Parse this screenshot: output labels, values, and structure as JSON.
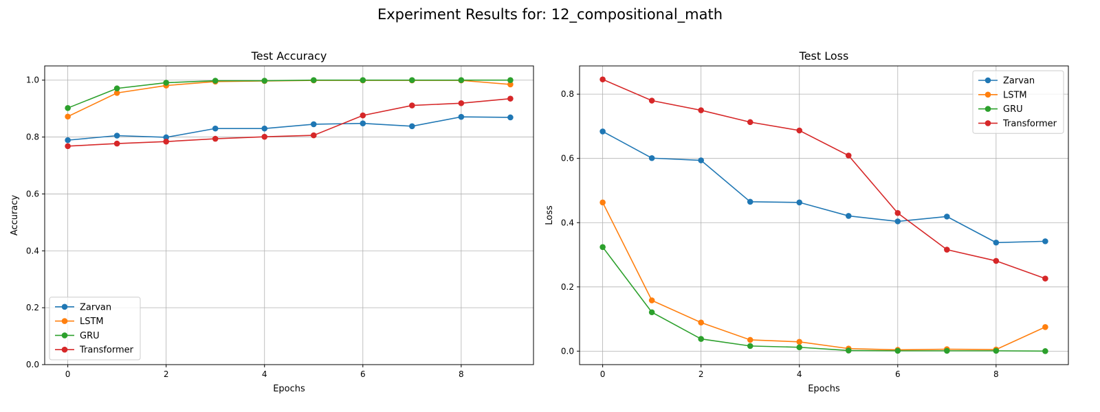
{
  "figure": {
    "suptitle": "Experiment Results for: 12_compositional_math"
  },
  "chart_data": [
    {
      "type": "line",
      "title": "Test Accuracy",
      "xlabel": "Epochs",
      "ylabel": "Accuracy",
      "x": [
        0,
        1,
        2,
        3,
        4,
        5,
        6,
        7,
        8,
        9
      ],
      "xticks": [
        "0",
        "2",
        "4",
        "6",
        "8"
      ],
      "yticks": [
        "0.0",
        "0.2",
        "0.4",
        "0.6",
        "0.8",
        "1.0"
      ],
      "xlim": [
        -0.47,
        9.47
      ],
      "ylim": [
        0,
        1.05
      ],
      "grid": true,
      "legend_position": "lower-left",
      "series": [
        {
          "name": "Zarvan",
          "color": "#1f77b4",
          "values": [
            0.789,
            0.805,
            0.799,
            0.83,
            0.83,
            0.845,
            0.848,
            0.838,
            0.871,
            0.869
          ]
        },
        {
          "name": "LSTM",
          "color": "#ff7f0e",
          "values": [
            0.872,
            0.955,
            0.981,
            0.995,
            0.997,
            0.999,
            0.999,
            0.999,
            0.999,
            0.985
          ]
        },
        {
          "name": "GRU",
          "color": "#2ca02c",
          "values": [
            0.902,
            0.971,
            0.991,
            0.998,
            0.998,
            1.0,
            1.0,
            1.0,
            1.0,
            1.0
          ]
        },
        {
          "name": "Transformer",
          "color": "#d62728",
          "values": [
            0.768,
            0.777,
            0.784,
            0.794,
            0.801,
            0.806,
            0.876,
            0.911,
            0.919,
            0.935
          ]
        }
      ]
    },
    {
      "type": "line",
      "title": "Test Loss",
      "xlabel": "Epochs",
      "ylabel": "Loss",
      "x": [
        0,
        1,
        2,
        3,
        4,
        5,
        6,
        7,
        8,
        9
      ],
      "xticks": [
        "0",
        "2",
        "4",
        "6",
        "8"
      ],
      "yticks": [
        "0.0",
        "0.2",
        "0.4",
        "0.6",
        "0.8"
      ],
      "xlim": [
        -0.47,
        9.47
      ],
      "ylim": [
        -0.042,
        0.888
      ],
      "grid": true,
      "legend_position": "upper-right",
      "series": [
        {
          "name": "Zarvan",
          "color": "#1f77b4",
          "values": [
            0.684,
            0.601,
            0.594,
            0.465,
            0.463,
            0.421,
            0.404,
            0.419,
            0.338,
            0.342
          ]
        },
        {
          "name": "LSTM",
          "color": "#ff7f0e",
          "values": [
            0.463,
            0.158,
            0.089,
            0.035,
            0.029,
            0.008,
            0.004,
            0.006,
            0.005,
            0.075
          ]
        },
        {
          "name": "GRU",
          "color": "#2ca02c",
          "values": [
            0.324,
            0.121,
            0.038,
            0.016,
            0.012,
            0.002,
            0.001,
            0.001,
            0.001,
            0.0
          ]
        },
        {
          "name": "Transformer",
          "color": "#d62728",
          "values": [
            0.846,
            0.78,
            0.75,
            0.713,
            0.687,
            0.609,
            0.43,
            0.316,
            0.281,
            0.226
          ]
        }
      ]
    }
  ]
}
